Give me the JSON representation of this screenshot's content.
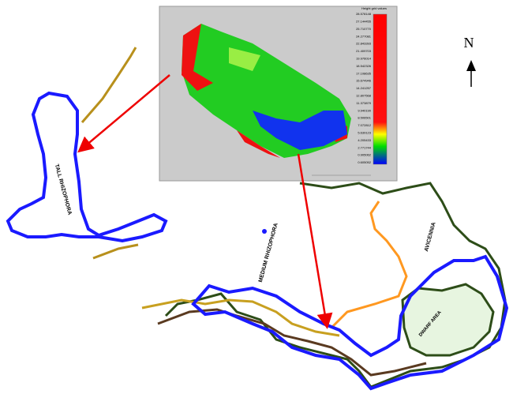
{
  "map": {
    "north_label": "N",
    "zones": [
      "TALL RHIZOPHORA",
      "MEDIUM RHIZOPHORA",
      "AVICENNIA",
      "DWARF AREA"
    ],
    "inset": {
      "title": "Height grid values",
      "scale_labels": [
        "28.578148",
        "27.144455",
        "25.710770",
        "24.277081",
        "22.843393",
        "21.409703",
        "19.976014",
        "18.542326",
        "17.108635",
        "15.674946",
        "14.241257",
        "12.807568",
        "11.373879",
        "9.940190",
        "8.506501",
        "7.072812",
        "5.639123",
        "4.205433",
        "2.771744",
        "0.905062",
        "0.605052"
      ]
    }
  }
}
